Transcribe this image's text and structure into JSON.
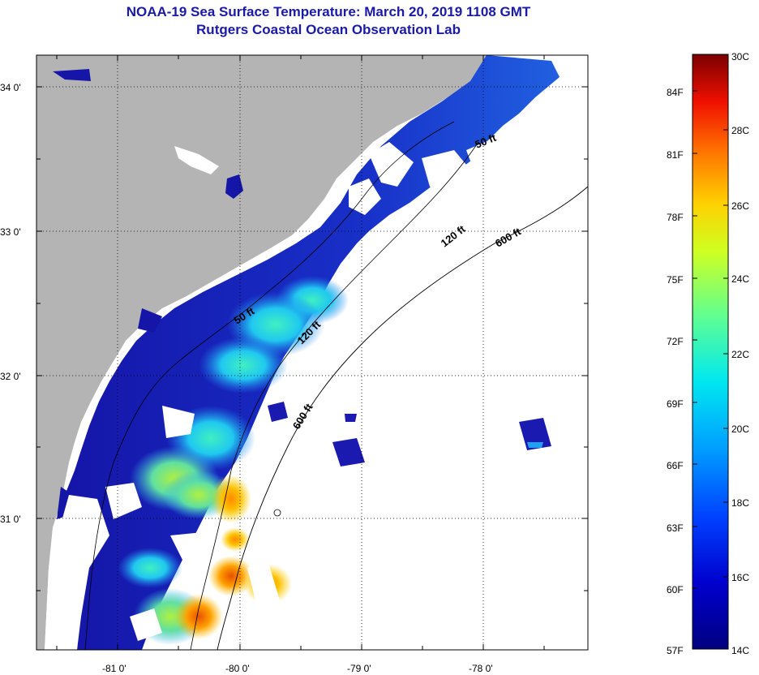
{
  "title": "NOAA-19 Sea Surface Temperature:  March 20, 2019 1108 GMT",
  "subtitle": "Rutgers Coastal Ocean Observation Lab",
  "axes": {
    "lat_labels": [
      "34 0'",
      "33 0'",
      "32 0'",
      "31 0'"
    ],
    "lon_labels": [
      "-81 0'",
      "-80 0'",
      "-79 0'",
      "-78 0'"
    ]
  },
  "contours": {
    "labels": [
      "50 ft",
      "120 ft",
      "600 ft",
      "50 ft",
      "120 ft",
      "600 ft"
    ]
  },
  "colorbar": {
    "fahrenheit": [
      "84F",
      "81F",
      "78F",
      "75F",
      "72F",
      "69F",
      "66F",
      "63F",
      "60F",
      "57F"
    ],
    "celsius": [
      "30C",
      "28C",
      "26C",
      "24C",
      "22C",
      "20C",
      "18C",
      "16C",
      "14C"
    ]
  },
  "colors": {
    "land": "#b4b4b4",
    "cloud_nodata": "#ffffff",
    "cold": "#1a1ab0",
    "title": "#1a1aa8"
  }
}
